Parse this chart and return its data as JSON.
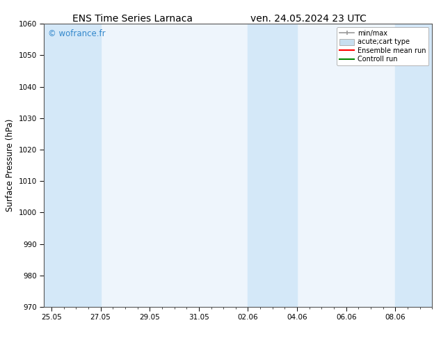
{
  "title_left": "ENS Time Series Larnaca",
  "title_right": "ven. 24.05.2024 23 UTC",
  "ylabel": "Surface Pressure (hPa)",
  "xlabel": "",
  "ylim": [
    970,
    1060
  ],
  "yticks": [
    970,
    980,
    990,
    1000,
    1010,
    1020,
    1030,
    1040,
    1050,
    1060
  ],
  "xtick_labels": [
    "25.05",
    "27.05",
    "29.05",
    "31.05",
    "02.06",
    "04.06",
    "06.06",
    "08.06"
  ],
  "xtick_positions": [
    0,
    2,
    4,
    6,
    8,
    10,
    12,
    14
  ],
  "xlim": [
    -0.3,
    15.5
  ],
  "background_color": "#ffffff",
  "plot_bg_color": "#eef5fc",
  "shaded_bands": [
    {
      "x_start": -0.3,
      "x_end": 2.0,
      "color": "#d4e8f8"
    },
    {
      "x_start": 8.0,
      "x_end": 10.0,
      "color": "#d4e8f8"
    },
    {
      "x_start": 14.0,
      "x_end": 15.5,
      "color": "#d4e8f8"
    }
  ],
  "watermark": "© wofrance.fr",
  "watermark_color": "#3388cc",
  "legend_entries": [
    {
      "label": "min/max",
      "color": "#999999",
      "type": "errorbar"
    },
    {
      "label": "acute;cart type",
      "color": "#c8dff0",
      "type": "filled_rect"
    },
    {
      "label": "Ensemble mean run",
      "color": "#ff0000",
      "type": "line"
    },
    {
      "label": "Controll run",
      "color": "#008800",
      "type": "line"
    }
  ],
  "title_fontsize": 10,
  "tick_fontsize": 7.5,
  "ylabel_fontsize": 8.5,
  "watermark_fontsize": 8.5,
  "legend_fontsize": 7,
  "border_color": "#000000",
  "spine_color": "#555555"
}
